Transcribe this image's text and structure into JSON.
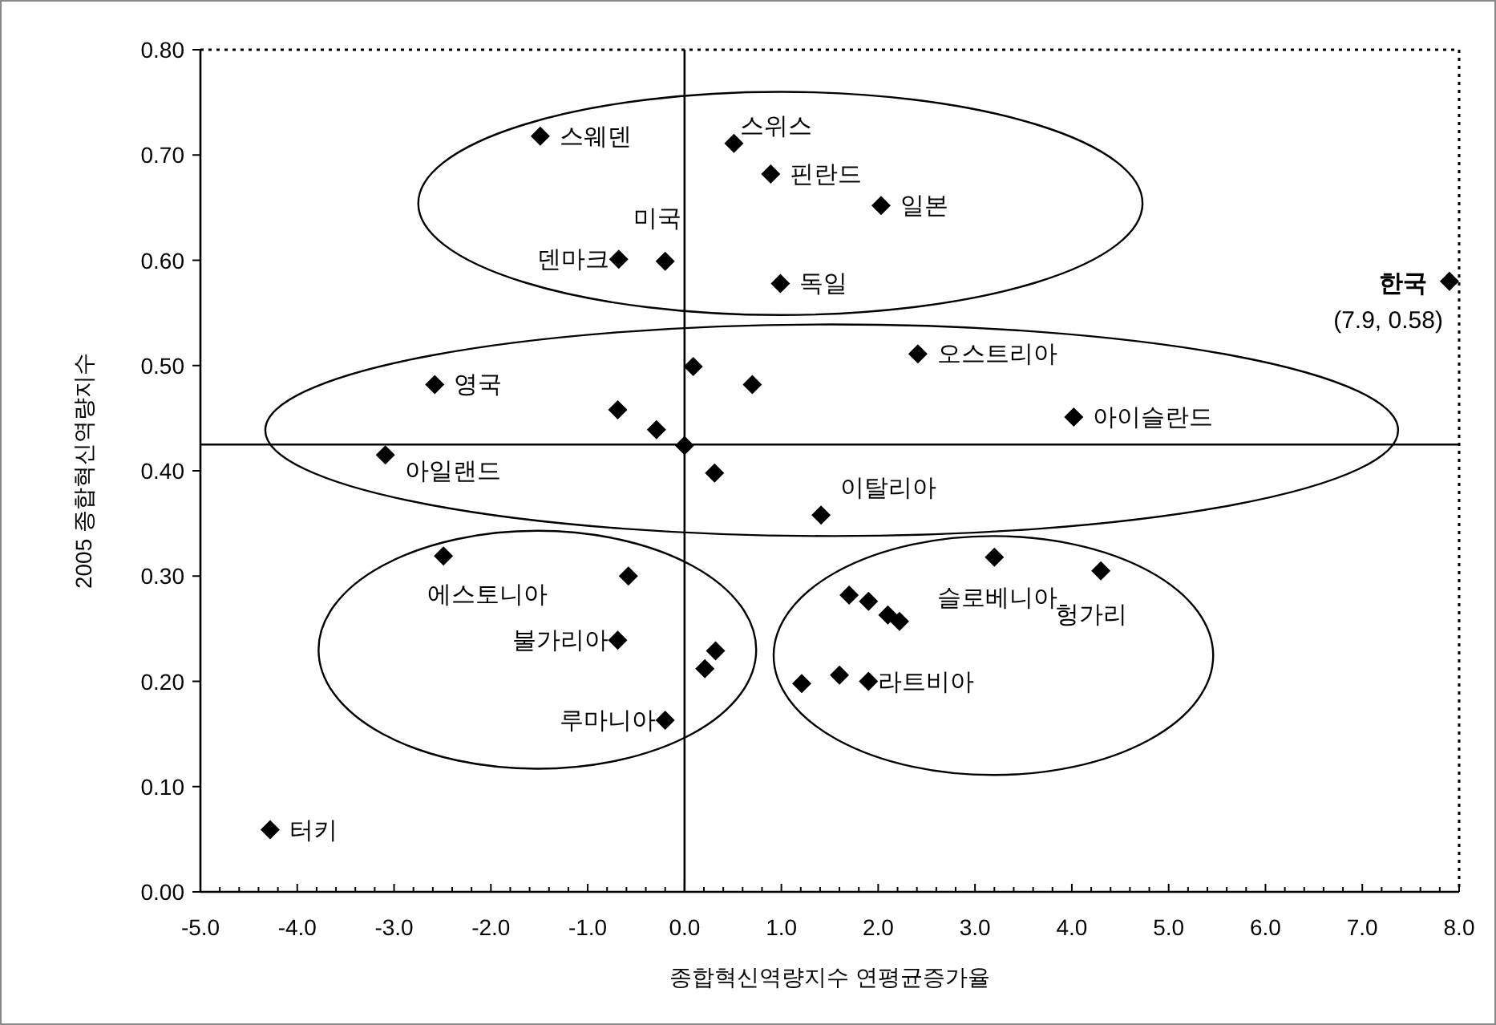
{
  "chart_data": {
    "type": "scatter",
    "xlabel": "종합혁신역량지수 연평균증가율",
    "ylabel": "2005 종합혁신역량지수",
    "xlim": [
      -5,
      8
    ],
    "ylim": [
      0,
      0.8
    ],
    "xticks": [
      {
        "value": -5,
        "label": "-5.0"
      },
      {
        "value": -4,
        "label": "-4.0"
      },
      {
        "value": -3,
        "label": "-3.0"
      },
      {
        "value": -2,
        "label": "-2.0"
      },
      {
        "value": -1,
        "label": "-1.0"
      },
      {
        "value": 0,
        "label": "0.0"
      },
      {
        "value": 1,
        "label": "1.0"
      },
      {
        "value": 2,
        "label": "2.0"
      },
      {
        "value": 3,
        "label": "3.0"
      },
      {
        "value": 4,
        "label": "4.0"
      },
      {
        "value": 5,
        "label": "5.0"
      },
      {
        "value": 6,
        "label": "6.0"
      },
      {
        "value": 7,
        "label": "7.0"
      },
      {
        "value": 8,
        "label": "8.0"
      }
    ],
    "yticks": [
      {
        "value": 0,
        "label": "0.00"
      },
      {
        "value": 0.1,
        "label": "0.10"
      },
      {
        "value": 0.2,
        "label": "0.20"
      },
      {
        "value": 0.3,
        "label": "0.30"
      },
      {
        "value": 0.4,
        "label": "0.40"
      },
      {
        "value": 0.5,
        "label": "0.50"
      },
      {
        "value": 0.6,
        "label": "0.60"
      },
      {
        "value": 0.7,
        "label": "0.70"
      },
      {
        "value": 0.8,
        "label": "0.80"
      }
    ],
    "marker": "diamond",
    "grid": false,
    "series": [
      {
        "color": "#000000",
        "x": [
          -1.49,
          0.51,
          0.89,
          2.03,
          -0.2,
          -0.68,
          0.99,
          2.41,
          -2.58,
          4.02,
          -3.09,
          1.41,
          -2.49,
          -0.69,
          -0.2,
          3.2,
          4.3,
          1.9,
          -4.28,
          7.9,
          0.09,
          0.7,
          -0.69,
          -0.29,
          0.0,
          0.31,
          -0.58,
          0.32,
          0.21,
          1.21,
          1.6,
          1.7,
          1.9,
          2.1,
          2.22
        ],
        "values": [
          0.718,
          0.711,
          0.682,
          0.652,
          0.599,
          0.601,
          0.578,
          0.511,
          0.482,
          0.451,
          0.415,
          0.358,
          0.319,
          0.239,
          0.163,
          0.318,
          0.305,
          0.2,
          0.059,
          0.58,
          0.499,
          0.482,
          0.458,
          0.439,
          0.424,
          0.398,
          0.3,
          0.229,
          0.212,
          0.198,
          0.206,
          0.282,
          0.276,
          0.263,
          0.257
        ]
      }
    ],
    "ref_lines": [
      {
        "axis": "x",
        "value": 0,
        "color": "#000000"
      },
      {
        "axis": "y",
        "value": 0.425,
        "color": "#000000"
      }
    ],
    "annotations": [
      {
        "text": "스웨덴",
        "x": -1.49,
        "y": 0.718
      },
      {
        "text": "스위스",
        "x": 0.51,
        "y": 0.711
      },
      {
        "text": "핀란드",
        "x": 0.89,
        "y": 0.682
      },
      {
        "text": "일본",
        "x": 2.03,
        "y": 0.652
      },
      {
        "text": "미국",
        "x": -0.2,
        "y": 0.599
      },
      {
        "text": "덴마크",
        "x": -0.68,
        "y": 0.601
      },
      {
        "text": "독일",
        "x": 0.99,
        "y": 0.578
      },
      {
        "text": "오스트리아",
        "x": 2.41,
        "y": 0.511
      },
      {
        "text": "영국",
        "x": -2.58,
        "y": 0.482
      },
      {
        "text": "아이슬란드",
        "x": 4.02,
        "y": 0.451
      },
      {
        "text": "아일랜드",
        "x": -3.09,
        "y": 0.415
      },
      {
        "text": "이탈리아",
        "x": 1.41,
        "y": 0.358
      },
      {
        "text": "에스토니아",
        "x": -2.49,
        "y": 0.319
      },
      {
        "text": "불가리아",
        "x": -0.69,
        "y": 0.239
      },
      {
        "text": "루마니아",
        "x": -0.2,
        "y": 0.163
      },
      {
        "text": "슬로베니아",
        "x": 3.2,
        "y": 0.318
      },
      {
        "text": "헝가리",
        "x": 4.3,
        "y": 0.305
      },
      {
        "text": "라트비아",
        "x": 1.9,
        "y": 0.2
      },
      {
        "text": "터키",
        "x": -4.28,
        "y": 0.059
      },
      {
        "text": "한국",
        "x": 7.9,
        "y": 0.58
      },
      {
        "text": "(7.9, 0.58)",
        "x": 7.9,
        "y": 0.58
      }
    ]
  }
}
